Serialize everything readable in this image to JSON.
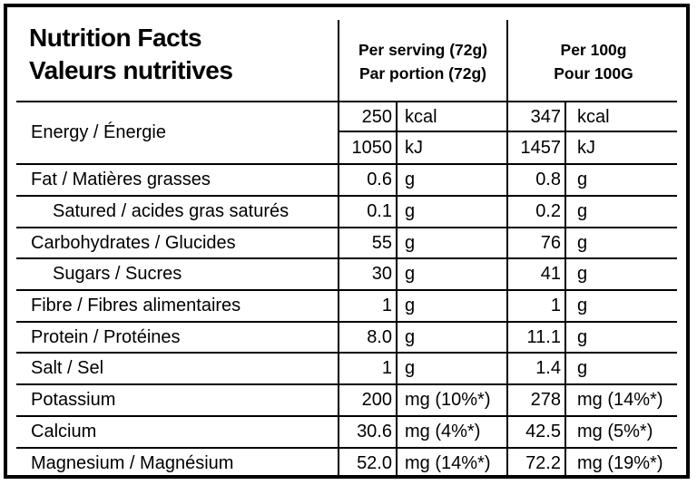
{
  "header": {
    "title_en": "Nutrition Facts",
    "title_fr": "Valeurs nutritives",
    "per_serving": "Per serving (72g)",
    "par_portion": "Par portion (72g)",
    "per_100": "Per 100g",
    "pour_100": "Pour 100G"
  },
  "energy": {
    "label": "Energy / Énergie",
    "kcal_serving": "250",
    "kcal_unit": "kcal",
    "kcal_100": "347",
    "kcal_unit_100": "kcal",
    "kj_serving": "1050",
    "kj_unit": "kJ",
    "kj_100": "1457",
    "kj_unit_100": "kJ"
  },
  "rows": [
    {
      "label": "Fat / Matières grasses",
      "serving": "0.6",
      "unit": "g",
      "per100": "0.8",
      "unit100": "g"
    },
    {
      "label": "Satured / acides gras saturés",
      "serving": "0.1",
      "unit": "g",
      "per100": "0.2",
      "unit100": "g"
    },
    {
      "label": "Carbohydrates / Glucides",
      "serving": "55",
      "unit": "g",
      "per100": "76",
      "unit100": "g"
    },
    {
      "label": "Sugars / Sucres",
      "serving": "30",
      "unit": "g",
      "per100": "41",
      "unit100": "g"
    },
    {
      "label": "Fibre / Fibres alimentaires",
      "serving": "1",
      "unit": "g",
      "per100": "1",
      "unit100": "g"
    },
    {
      "label": "Protein / Protéines",
      "serving": "8.0",
      "unit": "g",
      "per100": "11.1",
      "unit100": "g"
    },
    {
      "label": "Salt / Sel",
      "serving": "1",
      "unit": "g",
      "per100": "1.4",
      "unit100": "g"
    },
    {
      "label": "Potassium",
      "serving": "200",
      "unit": "mg (10%*)",
      "per100": "278",
      "unit100": "mg (14%*)"
    },
    {
      "label": "Calcium",
      "serving": "30.6",
      "unit": "mg (4%*)",
      "per100": "42.5",
      "unit100": "mg (5%*)"
    },
    {
      "label": "Magnesium / Magnésium",
      "serving": "52.0",
      "unit": "mg (14%*)",
      "per100": "72.2",
      "unit100": "mg (19%*)"
    }
  ]
}
